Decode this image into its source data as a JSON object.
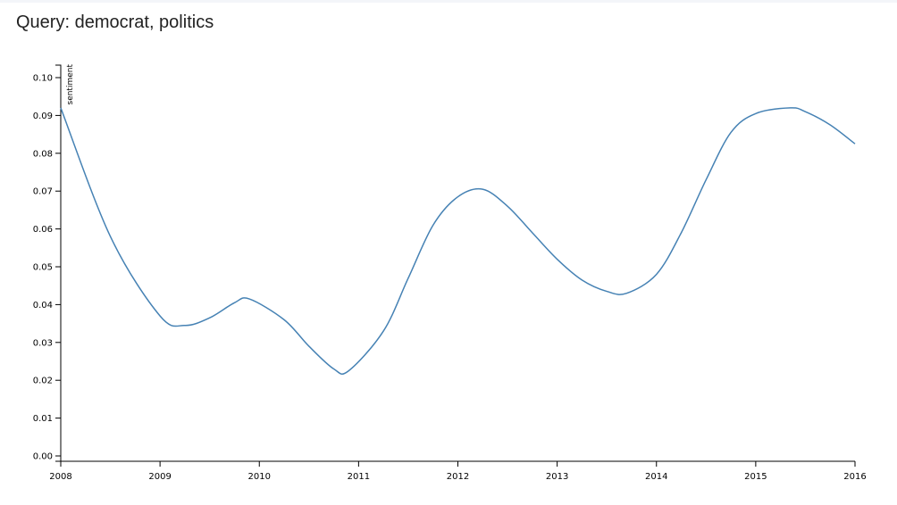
{
  "page": {
    "title": "Query: democrat, politics"
  },
  "colors": {
    "line": "#4682b4",
    "axis": "#000000",
    "background": "#ffffff"
  },
  "chart_data": {
    "type": "line",
    "title": "Query: democrat, politics",
    "xlabel": "",
    "ylabel": "sentiment",
    "xlim": [
      2008,
      2016
    ],
    "ylim": [
      0,
      0.1
    ],
    "x_ticks": [
      "2008",
      "2009",
      "2010",
      "2011",
      "2012",
      "2013",
      "2014",
      "2015",
      "2016"
    ],
    "y_ticks": [
      "0.00",
      "0.01",
      "0.02",
      "0.03",
      "0.04",
      "0.05",
      "0.06",
      "0.07",
      "0.08",
      "0.09",
      "0.10"
    ],
    "grid": false,
    "legend": "none",
    "series": [
      {
        "x": [
          2008,
          2008.5,
          2009,
          2009.25,
          2009.5,
          2009.75,
          2009.9,
          2010.25,
          2010.5,
          2010.75,
          2010.9,
          2011.25,
          2011.5,
          2011.75,
          2012,
          2012.25,
          2012.5,
          2012.75,
          2013,
          2013.25,
          2013.5,
          2013.7,
          2014,
          2014.25,
          2014.5,
          2014.75,
          2015,
          2015.35,
          2015.5,
          2015.75,
          2016
        ],
        "values": [
          0.092,
          0.058,
          0.037,
          0.0345,
          0.0365,
          0.0405,
          0.0415,
          0.036,
          0.029,
          0.023,
          0.0225,
          0.033,
          0.047,
          0.061,
          0.0685,
          0.0705,
          0.066,
          0.059,
          0.052,
          0.0465,
          0.0435,
          0.043,
          0.048,
          0.059,
          0.073,
          0.0855,
          0.0905,
          0.092,
          0.091,
          0.0875,
          0.0825
        ]
      }
    ]
  }
}
